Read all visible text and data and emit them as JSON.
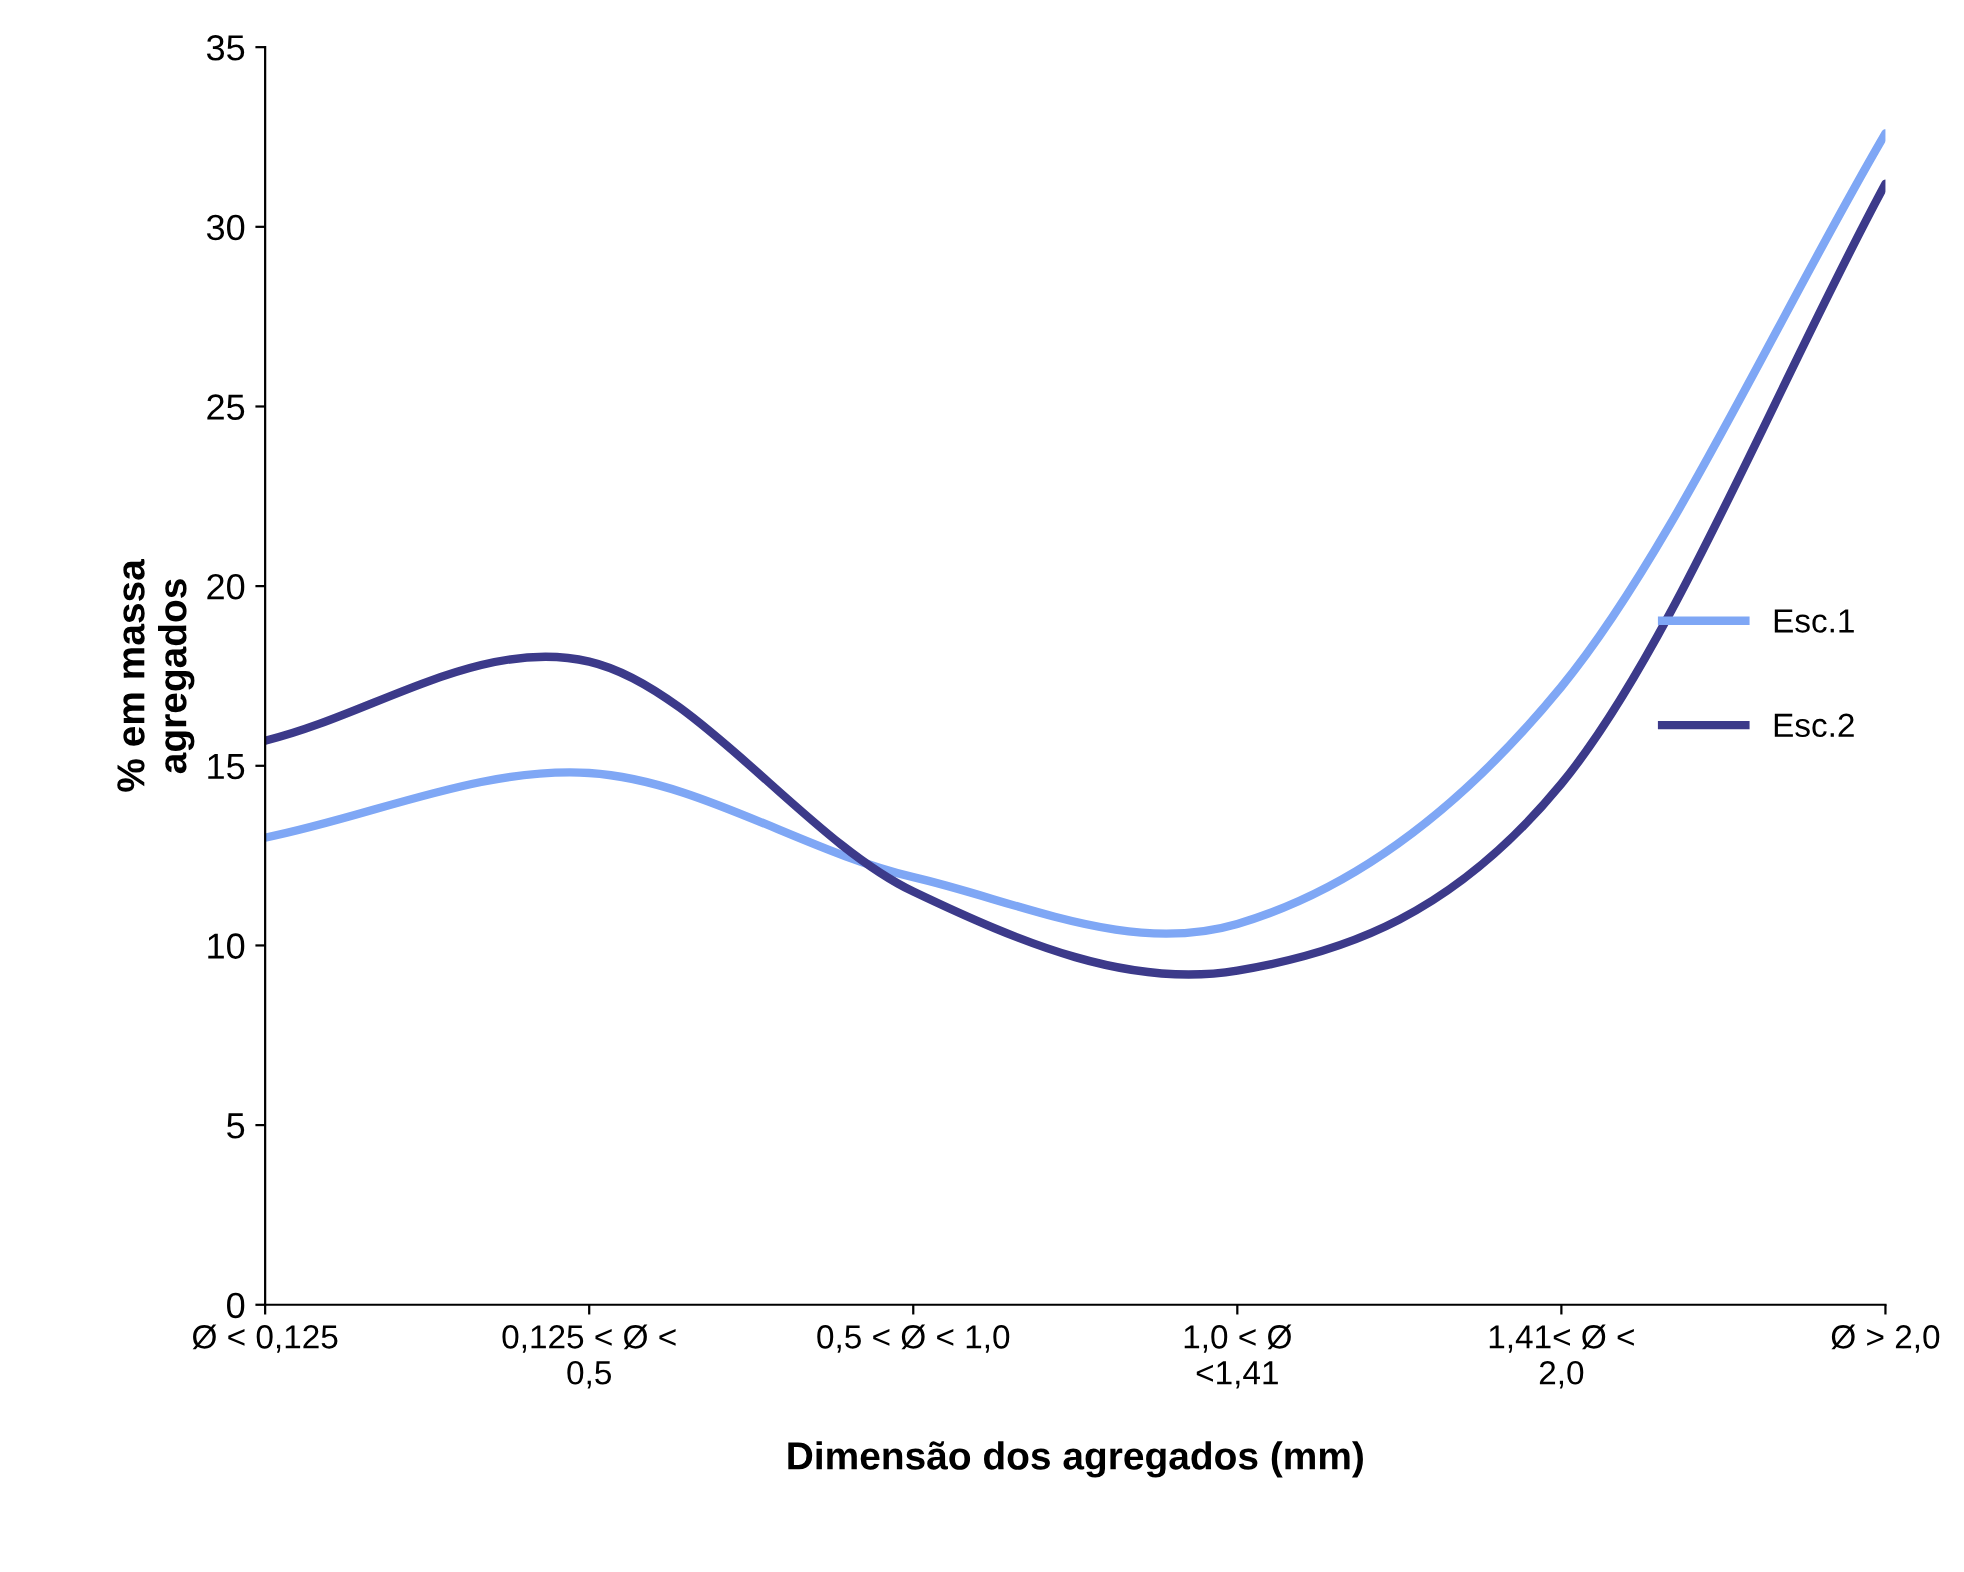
{
  "chart_data": {
    "type": "line",
    "xlabel": "Dimensão dos agregados (mm)",
    "ylabel": "% em massa\nagregados",
    "categories": [
      "Ø < 0,125",
      "0,125 < Ø <\n0,5",
      "0,5 < Ø < 1,0",
      "1,0 < Ø\n<1,41",
      "1,41< Ø <\n2,0",
      "Ø > 2,0"
    ],
    "series": [
      {
        "name": "Esc.1",
        "color": "#7fa7f5",
        "values": [
          13.0,
          14.8,
          11.9,
          10.6,
          17.2,
          32.6
        ]
      },
      {
        "name": "Esc.2",
        "color": "#3c3a8a",
        "values": [
          15.7,
          17.9,
          11.5,
          9.3,
          14.5,
          31.2
        ]
      }
    ],
    "ylim": [
      0,
      35
    ],
    "yticks": [
      0,
      5,
      10,
      15,
      20,
      25,
      30,
      35
    ],
    "grid": false,
    "legend": "right",
    "marker": "none",
    "line_style": "solid"
  }
}
